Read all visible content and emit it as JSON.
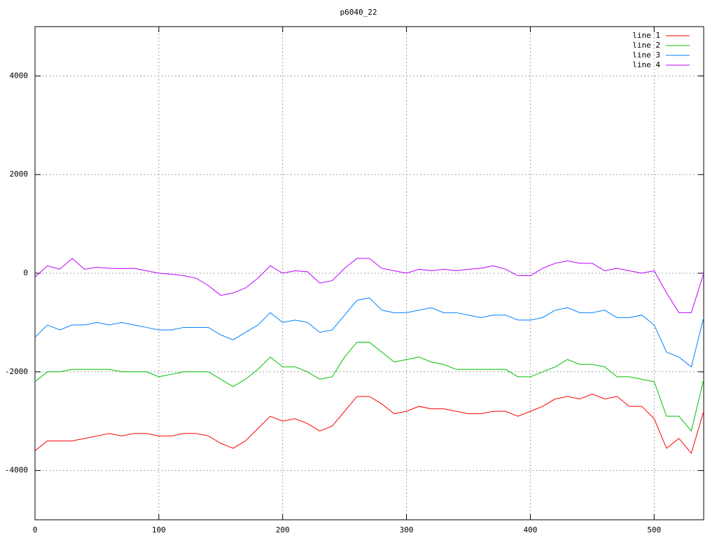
{
  "chart_data": {
    "type": "line",
    "title": "p6040_22",
    "x": [
      0,
      10,
      20,
      30,
      40,
      50,
      60,
      70,
      80,
      90,
      100,
      110,
      120,
      130,
      140,
      150,
      160,
      170,
      180,
      190,
      200,
      210,
      220,
      230,
      240,
      250,
      260,
      270,
      280,
      290,
      300,
      310,
      320,
      330,
      340,
      350,
      360,
      370,
      380,
      390,
      400,
      410,
      420,
      430,
      440,
      450,
      460,
      470,
      480,
      490,
      500,
      510,
      520,
      530,
      540
    ],
    "series": [
      {
        "name": "line 1",
        "color": "#ff0000",
        "values": [
          -3600,
          -3400,
          -3400,
          -3400,
          -3350,
          -3300,
          -3250,
          -3300,
          -3250,
          -3250,
          -3300,
          -3300,
          -3250,
          -3250,
          -3300,
          -3450,
          -3550,
          -3400,
          -3150,
          -2900,
          -3000,
          -2950,
          -3050,
          -3200,
          -3100,
          -2800,
          -2500,
          -2500,
          -2650,
          -2850,
          -2800,
          -2700,
          -2750,
          -2750,
          -2800,
          -2850,
          -2850,
          -2800,
          -2800,
          -2900,
          -2800,
          -2700,
          -2550,
          -2500,
          -2550,
          -2450,
          -2550,
          -2500,
          -2700,
          -2700,
          -2950,
          -3550,
          -3350,
          -3650,
          -2800
        ]
      },
      {
        "name": "line 2",
        "color": "#00c000",
        "values": [
          -2200,
          -2000,
          -2000,
          -1950,
          -1950,
          -1950,
          -1950,
          -2000,
          -2000,
          -2000,
          -2100,
          -2050,
          -2000,
          -2000,
          -2000,
          -2150,
          -2300,
          -2150,
          -1950,
          -1700,
          -1900,
          -1900,
          -2000,
          -2150,
          -2100,
          -1700,
          -1400,
          -1400,
          -1600,
          -1800,
          -1750,
          -1700,
          -1800,
          -1850,
          -1950,
          -1950,
          -1950,
          -1950,
          -1950,
          -2100,
          -2100,
          -2000,
          -1900,
          -1750,
          -1850,
          -1850,
          -1900,
          -2100,
          -2100,
          -2150,
          -2200,
          -2900,
          -2900,
          -3200,
          -2150
        ]
      },
      {
        "name": "line 3",
        "color": "#0080ff",
        "values": [
          -1300,
          -1050,
          -1150,
          -1050,
          -1050,
          -1000,
          -1050,
          -1000,
          -1050,
          -1100,
          -1150,
          -1150,
          -1100,
          -1100,
          -1100,
          -1250,
          -1350,
          -1200,
          -1050,
          -800,
          -1000,
          -950,
          -1000,
          -1200,
          -1150,
          -850,
          -550,
          -500,
          -750,
          -800,
          -800,
          -750,
          -700,
          -800,
          -800,
          -850,
          -900,
          -850,
          -850,
          -950,
          -950,
          -900,
          -750,
          -700,
          -800,
          -800,
          -750,
          -900,
          -900,
          -850,
          -1050,
          -1600,
          -1700,
          -1900,
          -900
        ]
      },
      {
        "name": "line 4",
        "color": "#c000ff",
        "values": [
          -80,
          150,
          80,
          300,
          80,
          120,
          100,
          90,
          100,
          50,
          0,
          -20,
          -50,
          -100,
          -250,
          -450,
          -400,
          -300,
          -100,
          150,
          0,
          50,
          30,
          -200,
          -150,
          100,
          300,
          300,
          100,
          50,
          0,
          80,
          50,
          80,
          50,
          80,
          100,
          150,
          80,
          -50,
          -50,
          100,
          200,
          250,
          200,
          200,
          50,
          100,
          50,
          0,
          50,
          -400,
          -800,
          -800,
          0
        ]
      }
    ],
    "xlim": [
      0,
      540
    ],
    "ylim": [
      -5000,
      5000
    ],
    "xticks": [
      0,
      100,
      200,
      300,
      400,
      500
    ],
    "yticks": [
      -4000,
      -2000,
      0,
      2000,
      4000
    ],
    "grid": true,
    "legend": "top-right"
  }
}
